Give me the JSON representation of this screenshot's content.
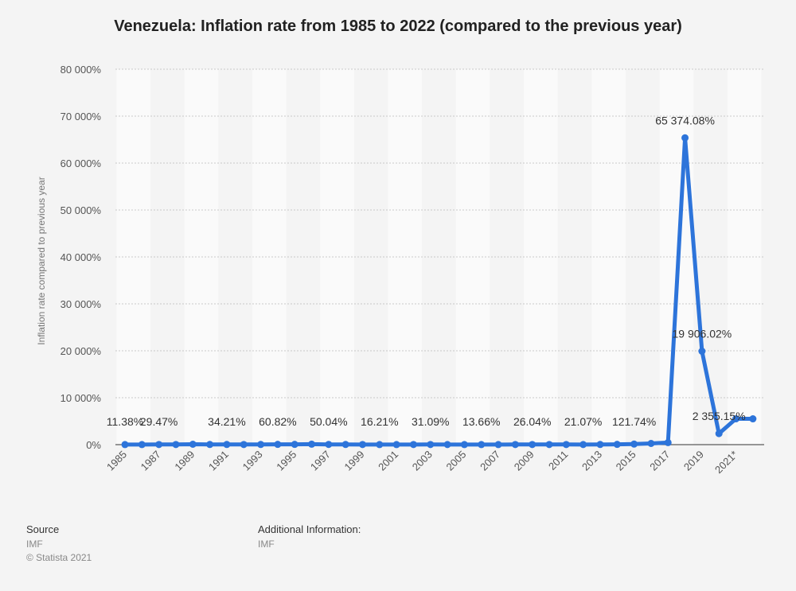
{
  "chart_data": {
    "type": "line",
    "title": "Venezuela: Inflation rate from 1985 to 2022 (compared to the previous year)",
    "xlabel": "",
    "ylabel": "Inflation rate compared to previous year",
    "ylim": [
      0,
      80000
    ],
    "yticks": [
      "0%",
      "10 000%",
      "20 000%",
      "30 000%",
      "40 000%",
      "50 000%",
      "60 000%",
      "70 000%",
      "80 000%"
    ],
    "xticks": [
      "1985",
      "1987",
      "1989",
      "1991",
      "1993",
      "1995",
      "1997",
      "1999",
      "2001",
      "2003",
      "2005",
      "2007",
      "2009",
      "2011",
      "2013",
      "2015",
      "2017",
      "2019",
      "2021*"
    ],
    "grid": true,
    "series": [
      {
        "name": "Inflation rate",
        "color": "#2d74da",
        "x": [
          "1985",
          "1986",
          "1987",
          "1988",
          "1989",
          "1990",
          "1991",
          "1992",
          "1993",
          "1994",
          "1995",
          "1996",
          "1997",
          "1998",
          "1999",
          "2000",
          "2001",
          "2002",
          "2003",
          "2004",
          "2005",
          "2006",
          "2007",
          "2008",
          "2009",
          "2010",
          "2011",
          "2012",
          "2013",
          "2014",
          "2015",
          "2016",
          "2017",
          "2018",
          "2019",
          "2020",
          "2021",
          "2022"
        ],
        "values": [
          11.38,
          11.54,
          29.47,
          29.48,
          84.46,
          40.66,
          34.21,
          31.44,
          38.12,
          60.82,
          59.92,
          99.88,
          50.04,
          35.78,
          23.57,
          16.21,
          12.53,
          22.43,
          31.09,
          21.75,
          15.95,
          13.66,
          18.7,
          31.44,
          26.04,
          28.19,
          26.09,
          21.07,
          40.64,
          62.17,
          121.74,
          254.95,
          438.12,
          65374.08,
          19906.02,
          2355.15,
          5500,
          5500
        ]
      }
    ],
    "data_labels": [
      {
        "index": 0,
        "text": "11.38%"
      },
      {
        "index": 2,
        "text": "29.47%"
      },
      {
        "index": 6,
        "text": "34.21%"
      },
      {
        "index": 9,
        "text": "60.82%"
      },
      {
        "index": 12,
        "text": "50.04%"
      },
      {
        "index": 15,
        "text": "16.21%"
      },
      {
        "index": 18,
        "text": "31.09%"
      },
      {
        "index": 21,
        "text": "13.66%"
      },
      {
        "index": 24,
        "text": "26.04%"
      },
      {
        "index": 27,
        "text": "21.07%"
      },
      {
        "index": 30,
        "text": "121.74%"
      },
      {
        "index": 33,
        "text": "65 374.08%"
      },
      {
        "index": 34,
        "text": "19 906.02%"
      },
      {
        "index": 35,
        "text": "2 355.15%"
      }
    ]
  },
  "footer": {
    "source_heading": "Source",
    "source_value": "IMF",
    "copyright": "© Statista 2021",
    "additional_heading": "Additional Information:",
    "additional_value": "IMF"
  },
  "colors": {
    "background": "#f4f4f4",
    "band": "#fafafa",
    "line": "#2d74da"
  }
}
